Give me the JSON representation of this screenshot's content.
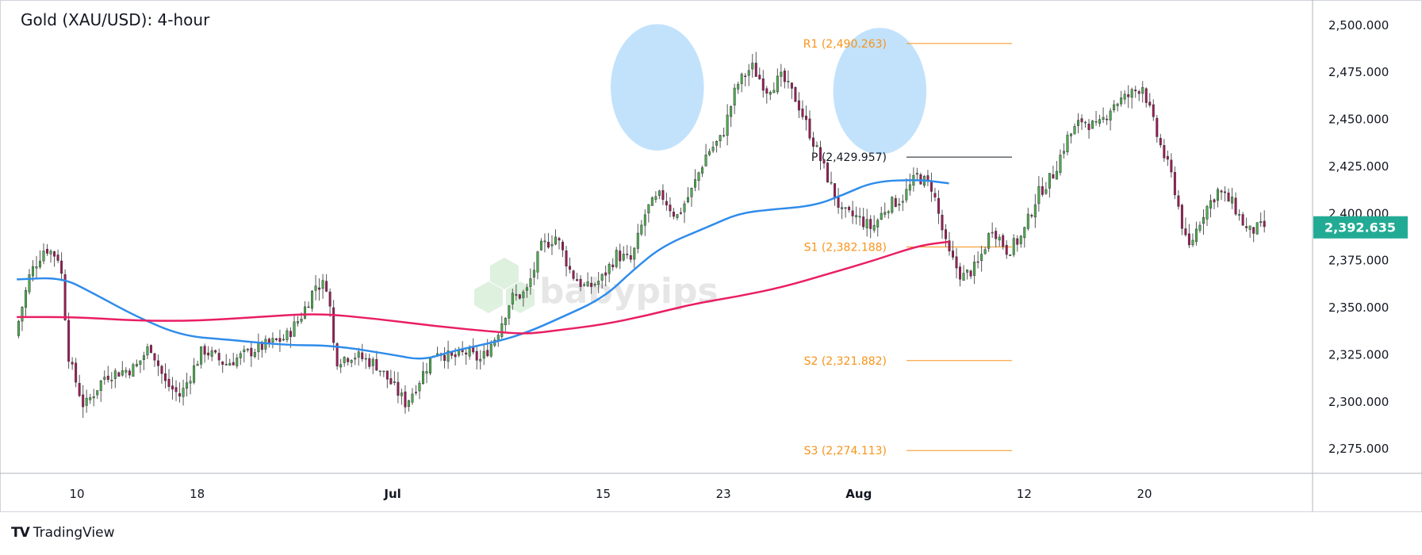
{
  "chart_data": {
    "type": "candlestick",
    "title": "Gold (XAU/USD): 4-hour",
    "ylim": [
      2262,
      2510
    ],
    "y_ticks": [
      2275,
      2300,
      2325,
      2350,
      2375,
      2400,
      2425,
      2450,
      2475,
      2500
    ],
    "y_tick_labels": [
      "2,275.000",
      "2,300.000",
      "2,325.000",
      "2,350.000",
      "2,375.000",
      "2,400.000",
      "2,425.000",
      "2,450.000",
      "2,475.000",
      "2,500.000"
    ],
    "x_ticks": [
      {
        "label": "10",
        "date": "2024-06-10"
      },
      {
        "label": "18",
        "date": "2024-06-18"
      },
      {
        "label": "Jul",
        "date": "2024-07-01",
        "bold": true
      },
      {
        "label": "15",
        "date": "2024-07-15"
      },
      {
        "label": "23",
        "date": "2024-07-23"
      },
      {
        "label": "Aug",
        "date": "2024-08-01",
        "bold": true
      },
      {
        "label": "12",
        "date": "2024-08-12"
      },
      {
        "label": "20",
        "date": "2024-08-20"
      }
    ],
    "current_price": 2392.635,
    "current_price_label": "2,392.635",
    "pivot_levels": [
      {
        "name": "R1",
        "value": 2490.263,
        "label": "R1 (2,490.263)",
        "color": "#f7931a"
      },
      {
        "name": "P",
        "value": 2429.957,
        "label": "P (2,429.957)",
        "color": "#131722"
      },
      {
        "name": "S1",
        "value": 2382.188,
        "label": "S1 (2,382.188)",
        "color": "#f7931a"
      },
      {
        "name": "S2",
        "value": 2321.882,
        "label": "S2 (2,321.882)",
        "color": "#f7931a"
      },
      {
        "name": "S3",
        "value": 2274.113,
        "label": "S3 (2,274.113)",
        "color": "#f7931a"
      }
    ],
    "series": [
      {
        "color": "#2f8ceb",
        "points": [
          {
            "date": "2024-06-06",
            "value": 2365
          },
          {
            "date": "2024-06-09",
            "value": 2366
          },
          {
            "date": "2024-06-11",
            "value": 2358
          },
          {
            "date": "2024-06-14",
            "value": 2345
          },
          {
            "date": "2024-06-17",
            "value": 2335
          },
          {
            "date": "2024-06-20",
            "value": 2333
          },
          {
            "date": "2024-06-24",
            "value": 2330
          },
          {
            "date": "2024-06-27",
            "value": 2330
          },
          {
            "date": "2024-07-01",
            "value": 2325
          },
          {
            "date": "2024-07-03",
            "value": 2322
          },
          {
            "date": "2024-07-05",
            "value": 2327
          },
          {
            "date": "2024-07-08",
            "value": 2332
          },
          {
            "date": "2024-07-10",
            "value": 2337
          },
          {
            "date": "2024-07-12",
            "value": 2344
          },
          {
            "date": "2024-07-15",
            "value": 2355
          },
          {
            "date": "2024-07-17",
            "value": 2370
          },
          {
            "date": "2024-07-19",
            "value": 2383
          },
          {
            "date": "2024-07-22",
            "value": 2393
          },
          {
            "date": "2024-07-24",
            "value": 2400
          },
          {
            "date": "2024-07-26",
            "value": 2402
          },
          {
            "date": "2024-07-29",
            "value": 2404
          },
          {
            "date": "2024-07-31",
            "value": 2410
          },
          {
            "date": "2024-08-02",
            "value": 2417
          },
          {
            "date": "2024-08-05",
            "value": 2418
          },
          {
            "date": "2024-08-07",
            "value": 2416
          }
        ]
      },
      {
        "color": "#e91e63",
        "points": [
          {
            "date": "2024-06-06",
            "value": 2345
          },
          {
            "date": "2024-06-10",
            "value": 2345
          },
          {
            "date": "2024-06-14",
            "value": 2343
          },
          {
            "date": "2024-06-18",
            "value": 2343
          },
          {
            "date": "2024-06-22",
            "value": 2345
          },
          {
            "date": "2024-06-26",
            "value": 2347
          },
          {
            "date": "2024-06-30",
            "value": 2344
          },
          {
            "date": "2024-07-04",
            "value": 2340
          },
          {
            "date": "2024-07-08",
            "value": 2337
          },
          {
            "date": "2024-07-10",
            "value": 2336
          },
          {
            "date": "2024-07-12",
            "value": 2338
          },
          {
            "date": "2024-07-15",
            "value": 2341
          },
          {
            "date": "2024-07-18",
            "value": 2346
          },
          {
            "date": "2024-07-21",
            "value": 2352
          },
          {
            "date": "2024-07-24",
            "value": 2356
          },
          {
            "date": "2024-07-27",
            "value": 2361
          },
          {
            "date": "2024-07-30",
            "value": 2368
          },
          {
            "date": "2024-08-02",
            "value": 2375
          },
          {
            "date": "2024-08-05",
            "value": 2383
          },
          {
            "date": "2024-08-07",
            "value": 2385
          }
        ]
      }
    ],
    "ohlc_waypoints": [
      {
        "date": "2024-06-06",
        "close": 2335
      },
      {
        "date": "2024-06-07",
        "close": 2368
      },
      {
        "date": "2024-06-08",
        "close": 2382
      },
      {
        "date": "2024-06-09",
        "close": 2376
      },
      {
        "date": "2024-06-09.6",
        "close": 2322
      },
      {
        "date": "2024-06-10.6",
        "close": 2297
      },
      {
        "date": "2024-06-12",
        "close": 2314
      },
      {
        "date": "2024-06-14",
        "close": 2318
      },
      {
        "date": "2024-06-15",
        "close": 2330
      },
      {
        "date": "2024-06-16",
        "close": 2310
      },
      {
        "date": "2024-06-17",
        "close": 2303
      },
      {
        "date": "2024-06-18.5",
        "close": 2328
      },
      {
        "date": "2024-06-20",
        "close": 2320
      },
      {
        "date": "2024-06-22",
        "close": 2328
      },
      {
        "date": "2024-06-24",
        "close": 2334
      },
      {
        "date": "2024-06-25",
        "close": 2345
      },
      {
        "date": "2024-06-26",
        "close": 2362
      },
      {
        "date": "2024-06-26.8",
        "close": 2362
      },
      {
        "date": "2024-06-27.3",
        "close": 2322
      },
      {
        "date": "2024-06-28.5",
        "close": 2325
      },
      {
        "date": "2024-06-30",
        "close": 2320
      },
      {
        "date": "2024-07-01",
        "close": 2310
      },
      {
        "date": "2024-07-02",
        "close": 2299
      },
      {
        "date": "2024-07-03",
        "close": 2313
      },
      {
        "date": "2024-07-04",
        "close": 2328
      },
      {
        "date": "2024-07-05",
        "close": 2323
      },
      {
        "date": "2024-07-06",
        "close": 2326
      },
      {
        "date": "2024-07-07",
        "close": 2322
      },
      {
        "date": "2024-07-08",
        "close": 2335
      },
      {
        "date": "2024-07-09",
        "close": 2355
      },
      {
        "date": "2024-07-10",
        "close": 2358
      },
      {
        "date": "2024-07-11",
        "close": 2382
      },
      {
        "date": "2024-07-12",
        "close": 2388
      },
      {
        "date": "2024-07-13",
        "close": 2368
      },
      {
        "date": "2024-07-14",
        "close": 2360
      },
      {
        "date": "2024-07-15",
        "close": 2365
      },
      {
        "date": "2024-07-16",
        "close": 2378
      },
      {
        "date": "2024-07-17",
        "close": 2375
      },
      {
        "date": "2024-07-18",
        "close": 2402
      },
      {
        "date": "2024-07-19",
        "close": 2410
      },
      {
        "date": "2024-07-20",
        "close": 2398
      },
      {
        "date": "2024-07-21",
        "close": 2412
      },
      {
        "date": "2024-07-22",
        "close": 2432
      },
      {
        "date": "2024-07-23",
        "close": 2440
      },
      {
        "date": "2024-07-24",
        "close": 2468
      },
      {
        "date": "2024-07-25",
        "close": 2478
      },
      {
        "date": "2024-07-26",
        "close": 2466
      },
      {
        "date": "2024-07-27",
        "close": 2472
      },
      {
        "date": "2024-07-28",
        "close": 2460
      },
      {
        "date": "2024-07-29",
        "close": 2440
      },
      {
        "date": "2024-07-30",
        "close": 2420
      },
      {
        "date": "2024-07-31",
        "close": 2400
      },
      {
        "date": "2024-08-01",
        "close": 2398
      },
      {
        "date": "2024-08-02",
        "close": 2392
      },
      {
        "date": "2024-08-03",
        "close": 2404
      },
      {
        "date": "2024-08-04",
        "close": 2408
      },
      {
        "date": "2024-08-05",
        "close": 2420
      },
      {
        "date": "2024-08-06",
        "close": 2414
      },
      {
        "date": "2024-08-07",
        "close": 2380
      },
      {
        "date": "2024-08-08",
        "close": 2366
      },
      {
        "date": "2024-08-09",
        "close": 2372
      },
      {
        "date": "2024-08-10",
        "close": 2393
      },
      {
        "date": "2024-08-11",
        "close": 2380
      },
      {
        "date": "2024-08-12",
        "close": 2388
      },
      {
        "date": "2024-08-13",
        "close": 2410
      },
      {
        "date": "2024-08-14",
        "close": 2420
      },
      {
        "date": "2024-08-15",
        "close": 2440
      },
      {
        "date": "2024-08-16",
        "close": 2450
      },
      {
        "date": "2024-08-17",
        "close": 2445
      },
      {
        "date": "2024-08-18",
        "close": 2458
      },
      {
        "date": "2024-08-19",
        "close": 2462
      },
      {
        "date": "2024-08-20",
        "close": 2468
      },
      {
        "date": "2024-08-21",
        "close": 2440
      },
      {
        "date": "2024-08-22",
        "close": 2418
      },
      {
        "date": "2024-08-23",
        "close": 2380
      },
      {
        "date": "2024-08-24",
        "close": 2400
      },
      {
        "date": "2024-08-25",
        "close": 2412
      },
      {
        "date": "2024-08-26",
        "close": 2405
      },
      {
        "date": "2024-08-27",
        "close": 2390
      },
      {
        "date": "2024-08-28",
        "close": 2393
      }
    ],
    "highlights": [
      {
        "date": "2024-07-18.6",
        "value": 2467,
        "rx_days": 2.0,
        "ry_value": 16
      },
      {
        "date": "2024-08-02.4",
        "value": 2465,
        "rx_days": 2.0,
        "ry_value": 16
      }
    ],
    "colors": {
      "up": "#26a69a",
      "down": "#ef5350",
      "up_body": "#4caf50",
      "down_body": "#a1195a"
    }
  },
  "footer": {
    "brand": "TradingView",
    "logo": "TV"
  },
  "watermark": "babypips"
}
